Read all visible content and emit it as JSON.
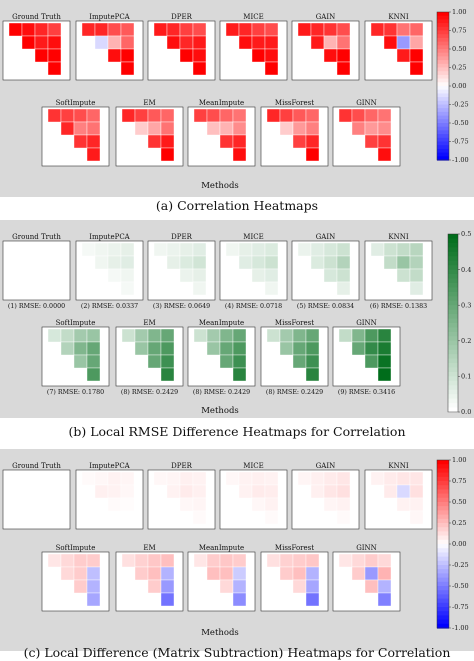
{
  "panels": [
    {
      "caption": "(a) Correlation Heatmaps",
      "xlabel": "Methods",
      "colormap": "diverging",
      "cbar_ticks": [
        "1.00",
        "0.75",
        "0.50",
        "0.25",
        "0.00",
        "-0.25",
        "-0.50",
        "-0.75",
        "-1.00"
      ],
      "cbar_range": [
        -1,
        1
      ],
      "rows": [
        [
          {
            "title": "Ground Truth",
            "rmse": "",
            "cells": [
              [
                1,
                0.95,
                0.85,
                0.75
              ],
              [
                1,
                0.9,
                0.95
              ],
              [
                1,
                1
              ],
              [
                1
              ]
            ]
          },
          {
            "title": "ImputePCA",
            "rmse": "",
            "cells": [
              [
                0.85,
                0.85,
                0.7,
                0.65
              ],
              [
                -0.15,
                0.3,
                0.6
              ],
              [
                0.95,
                1
              ],
              [
                1
              ]
            ]
          },
          {
            "title": "DPER",
            "rmse": "",
            "cells": [
              [
                0.9,
                0.85,
                0.75,
                0.7
              ],
              [
                0.95,
                0.85,
                0.9
              ],
              [
                1,
                0.95
              ],
              [
                1
              ]
            ]
          },
          {
            "title": "MICE",
            "rmse": "",
            "cells": [
              [
                0.9,
                0.85,
                0.75,
                0.7
              ],
              [
                0.95,
                0.9,
                0.9
              ],
              [
                1,
                0.95
              ],
              [
                1
              ]
            ]
          },
          {
            "title": "GAIN",
            "rmse": "",
            "cells": [
              [
                0.9,
                0.85,
                0.8,
                0.7
              ],
              [
                0.9,
                0.3,
                0.55
              ],
              [
                0.95,
                1
              ],
              [
                1
              ]
            ]
          },
          {
            "title": "KNNI",
            "rmse": "",
            "cells": [
              [
                0.85,
                0.8,
                0.55,
                0.6
              ],
              [
                0.95,
                -0.4,
                0.35
              ],
              [
                0.9,
                1
              ],
              [
                1
              ]
            ]
          }
        ],
        [
          {
            "title": "SoftImpute",
            "rmse": "",
            "cells": [
              [
                0.8,
                0.75,
                0.7,
                0.6
              ],
              [
                0.85,
                0.5,
                0.55
              ],
              [
                0.8,
                0.85
              ],
              [
                0.9
              ]
            ]
          },
          {
            "title": "EM",
            "rmse": "",
            "cells": [
              [
                0.85,
                0.75,
                0.65,
                0.6
              ],
              [
                0.2,
                0.35,
                0.55
              ],
              [
                0.8,
                0.9
              ],
              [
                1
              ]
            ]
          },
          {
            "title": "MeanImpute",
            "rmse": "",
            "cells": [
              [
                0.75,
                0.7,
                0.6,
                0.55
              ],
              [
                0.25,
                0.3,
                0.45
              ],
              [
                0.8,
                0.85
              ],
              [
                0.95
              ]
            ]
          },
          {
            "title": "MissForest",
            "rmse": "",
            "cells": [
              [
                0.85,
                0.75,
                0.65,
                0.6
              ],
              [
                0.2,
                0.4,
                0.5
              ],
              [
                0.75,
                0.85
              ],
              [
                1
              ]
            ]
          },
          {
            "title": "GINN",
            "rmse": "",
            "cells": [
              [
                0.8,
                0.7,
                0.6,
                0.55
              ],
              [
                0.5,
                0.4,
                0.45
              ],
              [
                0.75,
                0.8
              ],
              [
                0.95
              ]
            ]
          }
        ]
      ]
    },
    {
      "caption": "(b) Local RMSE Difference Heatmaps for Correlation",
      "xlabel": "Methods",
      "colormap": "greens",
      "cbar_ticks": [
        "0.5",
        "0.4",
        "0.3",
        "0.2",
        "0.1",
        "0.0"
      ],
      "cbar_range": [
        0,
        0.5
      ],
      "rows": [
        [
          {
            "title": "Ground Truth",
            "rmse": "(1) RMSE: 0.0000",
            "cells": [
              [
                0,
                0,
                0,
                0
              ],
              [
                0,
                0,
                0
              ],
              [
                0,
                0
              ],
              [
                0
              ]
            ]
          },
          {
            "title": "ImputePCA",
            "rmse": "(2) RMSE: 0.0337",
            "cells": [
              [
                0.02,
                0.03,
                0.04,
                0.05
              ],
              [
                0.03,
                0.05,
                0.06
              ],
              [
                0.02,
                0.03
              ],
              [
                0.02
              ]
            ]
          },
          {
            "title": "DPER",
            "rmse": "(3) RMSE: 0.0649",
            "cells": [
              [
                0.03,
                0.04,
                0.05,
                0.06
              ],
              [
                0.05,
                0.07,
                0.09
              ],
              [
                0.04,
                0.05
              ],
              [
                0.03
              ]
            ]
          },
          {
            "title": "MICE",
            "rmse": "(4) RMSE: 0.0718",
            "cells": [
              [
                0.03,
                0.05,
                0.06,
                0.07
              ],
              [
                0.06,
                0.08,
                0.1
              ],
              [
                0.05,
                0.06
              ],
              [
                0.03
              ]
            ]
          },
          {
            "title": "GAIN",
            "rmse": "(5) RMSE: 0.0834",
            "cells": [
              [
                0.04,
                0.06,
                0.08,
                0.1
              ],
              [
                0.07,
                0.1,
                0.15
              ],
              [
                0.08,
                0.1
              ],
              [
                0.05
              ]
            ]
          },
          {
            "title": "KNNI",
            "rmse": "(6) RMSE: 0.1383",
            "cells": [
              [
                0.06,
                0.1,
                0.12,
                0.14
              ],
              [
                0.12,
                0.2,
                0.15
              ],
              [
                0.1,
                0.12
              ],
              [
                0.06
              ]
            ]
          }
        ],
        [
          {
            "title": "SoftImpute",
            "rmse": "(7) RMSE: 0.1780",
            "cells": [
              [
                0.08,
                0.12,
                0.18,
                0.2
              ],
              [
                0.15,
                0.25,
                0.3
              ],
              [
                0.2,
                0.3
              ],
              [
                0.35
              ]
            ]
          },
          {
            "title": "EM",
            "rmse": "(8) RMSE: 0.2429",
            "cells": [
              [
                0.1,
                0.18,
                0.25,
                0.3
              ],
              [
                0.2,
                0.3,
                0.35
              ],
              [
                0.3,
                0.38
              ],
              [
                0.42
              ]
            ]
          },
          {
            "title": "MeanImpute",
            "rmse": "(8) RMSE: 0.2429",
            "cells": [
              [
                0.1,
                0.18,
                0.25,
                0.3
              ],
              [
                0.2,
                0.3,
                0.35
              ],
              [
                0.3,
                0.38
              ],
              [
                0.42
              ]
            ]
          },
          {
            "title": "MissForest",
            "rmse": "(8) RMSE: 0.2429",
            "cells": [
              [
                0.1,
                0.18,
                0.25,
                0.3
              ],
              [
                0.2,
                0.3,
                0.35
              ],
              [
                0.3,
                0.38
              ],
              [
                0.42
              ]
            ]
          },
          {
            "title": "GINN",
            "rmse": "(9) RMSE: 0.3416",
            "cells": [
              [
                0.12,
                0.25,
                0.35,
                0.42
              ],
              [
                0.3,
                0.4,
                0.45
              ],
              [
                0.35,
                0.48
              ],
              [
                0.5
              ]
            ]
          }
        ]
      ]
    },
    {
      "caption": "(c) Local Difference (Matrix Subtraction) Heatmaps for Correlation",
      "xlabel": "Methods",
      "colormap": "diverging",
      "cbar_ticks": [
        "1.00",
        "0.75",
        "0.50",
        "0.25",
        "0.00",
        "-0.25",
        "-0.50",
        "-0.75",
        "-1.00"
      ],
      "cbar_range": [
        -1,
        1
      ],
      "rows": [
        [
          {
            "title": "Ground Truth",
            "rmse": "",
            "cells": [
              [
                0,
                0,
                0,
                0
              ],
              [
                0,
                0,
                0
              ],
              [
                0,
                0
              ],
              [
                0
              ]
            ]
          },
          {
            "title": "ImputePCA",
            "rmse": "",
            "cells": [
              [
                0.02,
                0.03,
                0.05,
                0.04
              ],
              [
                0.06,
                0.05,
                0.03
              ],
              [
                0.02,
                0.01
              ],
              [
                0
              ]
            ]
          },
          {
            "title": "DPER",
            "rmse": "",
            "cells": [
              [
                0.03,
                0.04,
                0.06,
                0.05
              ],
              [
                0.05,
                0.08,
                0.06
              ],
              [
                0.03,
                0.04
              ],
              [
                0.02
              ]
            ]
          },
          {
            "title": "MICE",
            "rmse": "",
            "cells": [
              [
                0.03,
                0.05,
                0.06,
                0.05
              ],
              [
                0.05,
                0.08,
                0.07
              ],
              [
                0.03,
                0.05
              ],
              [
                0.02
              ]
            ]
          },
          {
            "title": "GAIN",
            "rmse": "",
            "cells": [
              [
                0.04,
                0.06,
                0.08,
                0.1
              ],
              [
                0.06,
                0.1,
                0.12
              ],
              [
                0.04,
                0.05
              ],
              [
                0.02
              ]
            ]
          },
          {
            "title": "KNNI",
            "rmse": "",
            "cells": [
              [
                0.05,
                0.08,
                0.1,
                0.1
              ],
              [
                0.08,
                -0.15,
                0.12
              ],
              [
                0.05,
                0.05
              ],
              [
                0.03
              ]
            ]
          }
        ],
        [
          {
            "title": "SoftImpute",
            "rmse": "",
            "cells": [
              [
                0.1,
                0.15,
                0.2,
                0.2
              ],
              [
                0.15,
                0.2,
                -0.25
              ],
              [
                0.2,
                -0.3
              ],
              [
                -0.35
              ]
            ]
          },
          {
            "title": "EM",
            "rmse": "",
            "cells": [
              [
                0.12,
                0.18,
                0.22,
                0.25
              ],
              [
                0.2,
                0.25,
                -0.3
              ],
              [
                0.2,
                -0.4
              ],
              [
                -0.55
              ]
            ]
          },
          {
            "title": "MeanImpute",
            "rmse": "",
            "cells": [
              [
                0.1,
                0.2,
                0.22,
                0.2
              ],
              [
                0.25,
                0.25,
                -0.2
              ],
              [
                0.15,
                -0.3
              ],
              [
                -0.45
              ]
            ]
          },
          {
            "title": "MissForest",
            "rmse": "",
            "cells": [
              [
                0.12,
                0.18,
                0.2,
                0.22
              ],
              [
                0.2,
                0.25,
                -0.3
              ],
              [
                0.15,
                -0.35
              ],
              [
                -0.55
              ]
            ]
          },
          {
            "title": "GINN",
            "rmse": "",
            "cells": [
              [
                0.1,
                0.15,
                0.2,
                0.15
              ],
              [
                0.2,
                -0.4,
                0.3
              ],
              [
                0.25,
                -0.3
              ],
              [
                -0.5
              ]
            ]
          }
        ]
      ]
    }
  ],
  "chart_data": {
    "type": "heatmap",
    "note_series": "each method panel is an upper-triangular correlation-style heatmap",
    "methods": [
      "Ground Truth",
      "ImputePCA",
      "DPER",
      "MICE",
      "GAIN",
      "KNNI",
      "SoftImpute",
      "EM",
      "MeanImpute",
      "MissForest",
      "GINN"
    ],
    "rmse_labels": [
      "(1) RMSE: 0.0000",
      "(2) RMSE: 0.0337",
      "(3) RMSE: 0.0649",
      "(4) RMSE: 0.0718",
      "(5) RMSE: 0.0834",
      "(6) RMSE: 0.1383",
      "(7) RMSE: 0.1780",
      "(8) RMSE: 0.2429",
      "(8) RMSE: 0.2429",
      "(8) RMSE: 0.2429",
      "(9) RMSE: 0.3416"
    ],
    "xlabel": "Methods"
  },
  "colors": {
    "background": "#d9d9d9",
    "diverging_low": "#0000ff",
    "diverging_mid": "#ffffff",
    "diverging_high": "#ff0000",
    "greens_low": "#ffffff",
    "greens_high": "#006d1b"
  }
}
